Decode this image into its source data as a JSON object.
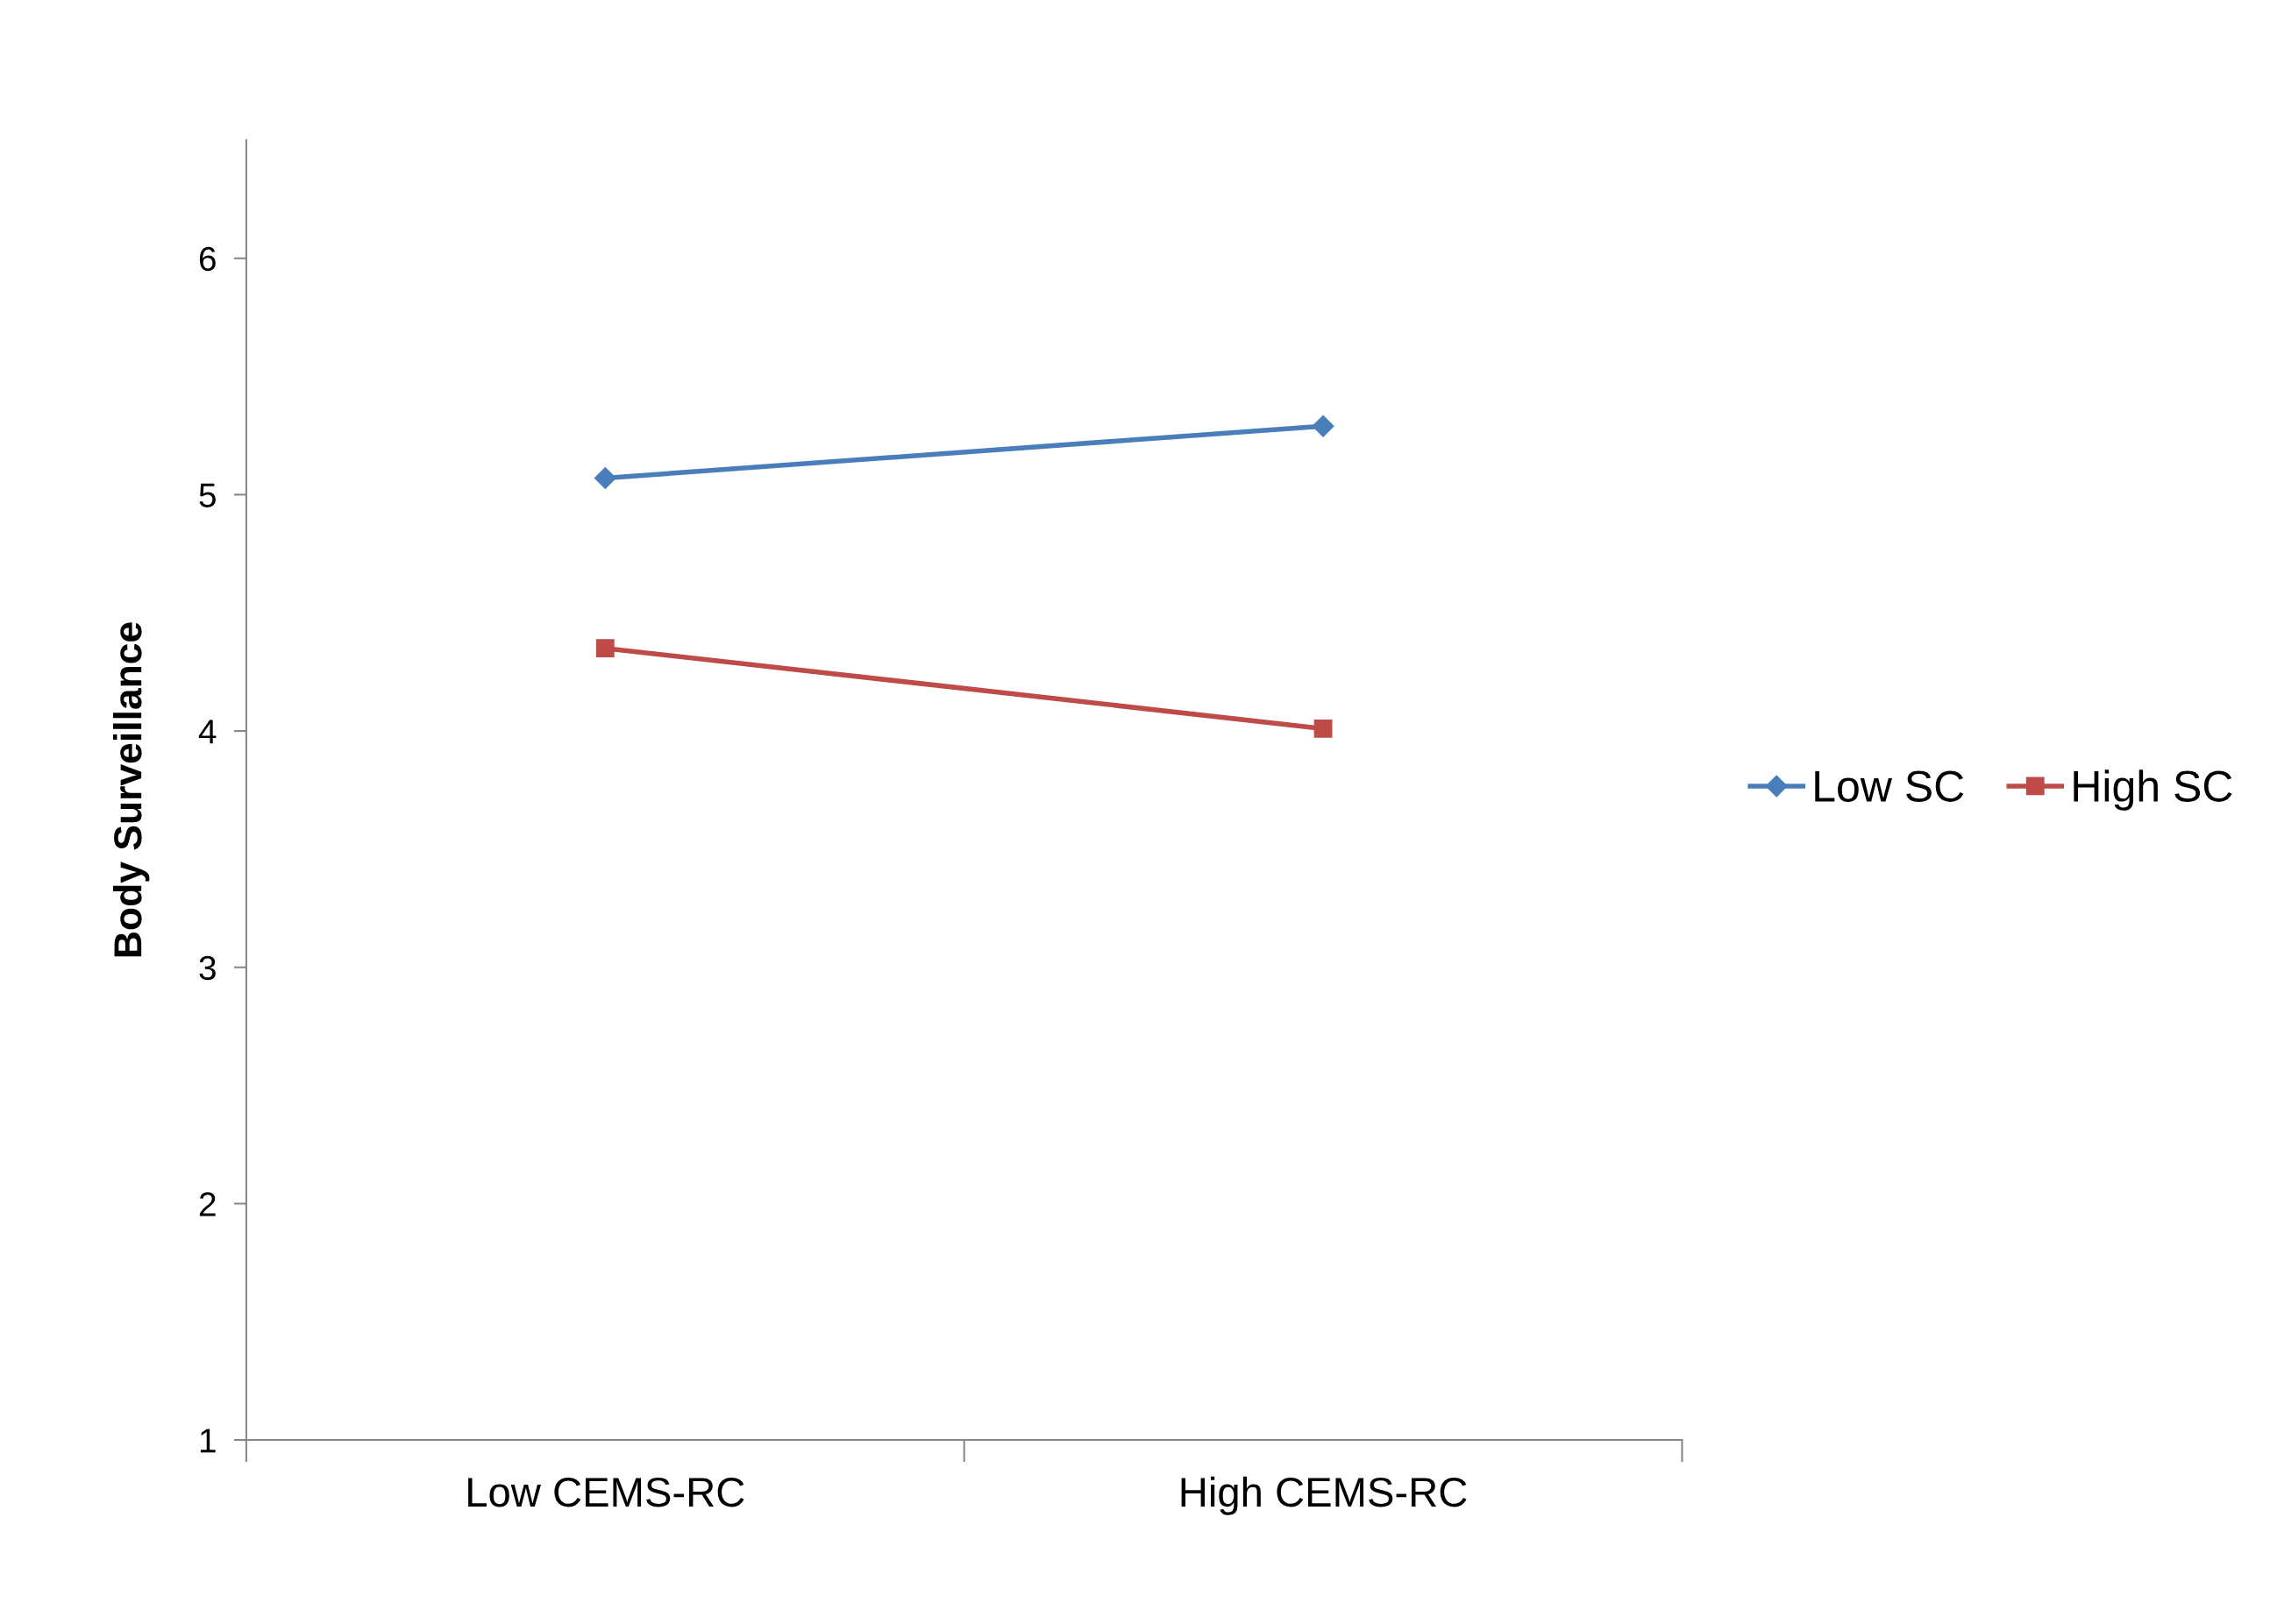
{
  "chart_data": {
    "type": "line",
    "ylabel": "Body Surveillance",
    "categories": [
      "Low CEMS-RC",
      "High CEMS-RC"
    ],
    "series": [
      {
        "name": "Low SC",
        "color": "#4a7ebb",
        "marker": "diamond",
        "values": [
          5.07,
          5.29
        ]
      },
      {
        "name": "High SC",
        "color": "#be4b48",
        "marker": "square",
        "values": [
          4.35,
          4.01
        ]
      }
    ],
    "ylim": [
      1,
      6.5
    ],
    "yticks": [
      1,
      2,
      3,
      4,
      5,
      6
    ],
    "grid": false,
    "legend": "right",
    "line_style": "solid"
  }
}
